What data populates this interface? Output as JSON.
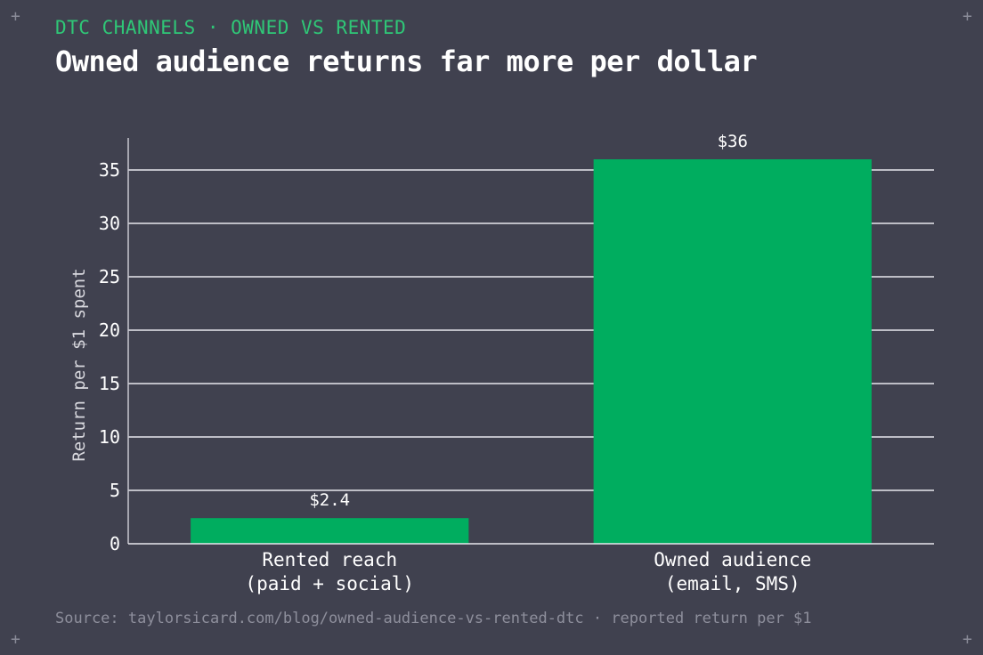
{
  "header": {
    "kicker": "DTC CHANNELS · OWNED VS RENTED",
    "title": "Owned audience returns far more per dollar"
  },
  "footer": {
    "source": "Source: taylorsicard.com/blog/owned-audience-vs-rented-dtc · reported return per $1"
  },
  "colors": {
    "background": "#40414f",
    "bar": "#00ad5f",
    "kicker": "#2fc777",
    "grid": "#e8e8ee"
  },
  "chart_data": {
    "type": "bar",
    "title": "Owned audience returns far more per dollar",
    "ylabel": "Return per $1 spent",
    "xlabel": "",
    "ylim": [
      0,
      38
    ],
    "yticks": [
      0,
      5,
      10,
      15,
      20,
      25,
      30,
      35
    ],
    "grid": true,
    "categories": [
      [
        "Rented reach",
        "(paid + social)"
      ],
      [
        "Owned audience",
        "(email, SMS)"
      ]
    ],
    "values": [
      2.4,
      36
    ],
    "data_labels": [
      "$2.4",
      "$36"
    ]
  }
}
